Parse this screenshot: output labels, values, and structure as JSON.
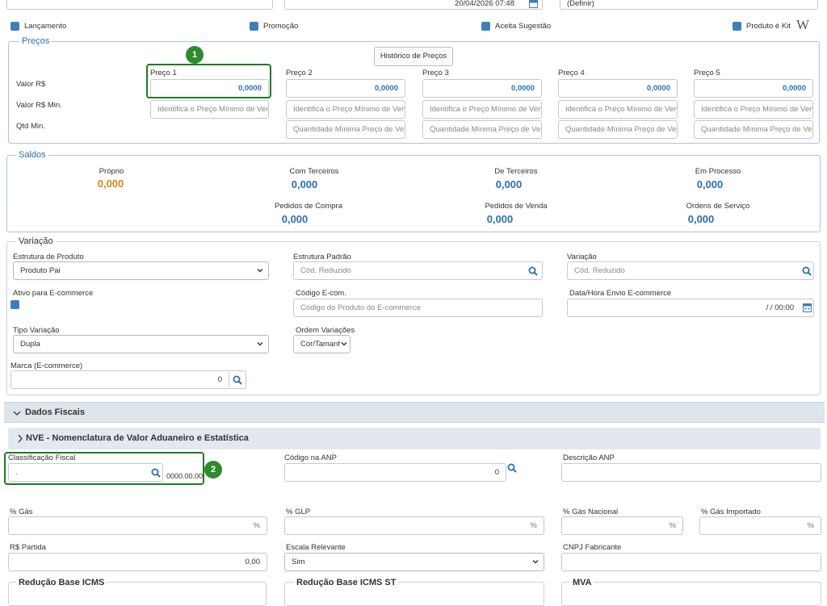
{
  "top": {
    "datetime": "20/04/2026 07:48",
    "definir": "(Definir)"
  },
  "flags": [
    {
      "label": "Lançamento"
    },
    {
      "label": "Promoção"
    },
    {
      "label": "Aceita Sugestão"
    },
    {
      "label": "Produto é Kit"
    }
  ],
  "wiki_glyph": "W",
  "precos": {
    "legend": "Preços",
    "history_button": "Histórico de Preços",
    "row_labels": [
      "Valor R$",
      "Valor R$ Min.",
      "Qtd Min."
    ],
    "columns": [
      {
        "label": "Preço 1",
        "value": "0,0000",
        "min_placeholder": "Identifica o Preço Mínimo de Ven",
        "qty_placeholder": ""
      },
      {
        "label": "Preço 2",
        "value": "0,0000",
        "min_placeholder": "Identifica o Preço Mínimo de Ven",
        "qty_placeholder": "Quantidade Mínima Preço de Ver"
      },
      {
        "label": "Preço 3",
        "value": "0,0000",
        "min_placeholder": "Identifica o Preço Mínimo de Ven",
        "qty_placeholder": "Quantidade Mínima Preço de Ver"
      },
      {
        "label": "Preço 4",
        "value": "0,0000",
        "min_placeholder": "Identifica o Preço Mínimo de Ven",
        "qty_placeholder": "Quantidade Mínima Preço de Ver"
      },
      {
        "label": "Preço 5",
        "value": "0,0000",
        "min_placeholder": "Identifica o Preço Mínimo de Ven",
        "qty_placeholder": "Quantidade Mínima Preço de Ver"
      }
    ]
  },
  "saldos": {
    "legend": "Saldos",
    "items": [
      {
        "label": "Próprio",
        "value": "0,000"
      },
      {
        "label": "Com Terceiros",
        "value": "0,000"
      },
      {
        "label": "De Terceiros",
        "value": "0,000"
      },
      {
        "label": "Em Processo",
        "value": "0,000"
      },
      {
        "label": "Pedidos de Compra",
        "value": "0,000"
      },
      {
        "label": "Pedidos de Venda",
        "value": "0,000"
      },
      {
        "label": "Ordens de Serviço",
        "value": "0,000"
      }
    ]
  },
  "variacao": {
    "legend": "Variação",
    "estrutura_produto": {
      "label": "Estrutura de Produto",
      "value": "Produto Pai"
    },
    "estrutura_padrao": {
      "label": "Estrutura Padrão",
      "placeholder": "Cód. Reduzido"
    },
    "variacao": {
      "label": "Variação",
      "placeholder": "Cód. Reduzido"
    },
    "ativo_ecommerce": {
      "label": "Ativo para E-commerce"
    },
    "codigo_ecom": {
      "label": "Código E-com.",
      "placeholder": "Código do Produto do E-commerce"
    },
    "data_envio": {
      "label": "Data/Hora Envio E-commerce",
      "value": "/  /   00:00"
    },
    "tipo_variacao": {
      "label": "Tipo Variação",
      "value": "Dupla"
    },
    "ordem_variacoes": {
      "label": "Ordem Variações",
      "value": "Cor/Tamanho"
    },
    "marca": {
      "label": "Marca (E-commerce)",
      "value": "0"
    }
  },
  "dados_fiscais": {
    "title": "Dados Fiscais",
    "nve_title": "NVE - Nomenclatura de Valor Aduaneiro e Estatística",
    "classificacao": {
      "label": "Classificação Fiscal",
      "value": ".",
      "mask": "0000.00.00"
    },
    "codigo_anp": {
      "label": "Código na ANP",
      "value": "0"
    },
    "descricao_anp": {
      "label": "Descrição ANP"
    },
    "gas": {
      "label": "% Gás",
      "suffix": "%"
    },
    "glp": {
      "label": "% GLP",
      "suffix": "%"
    },
    "gas_nacional": {
      "label": "% Gás Nacional",
      "suffix": "%"
    },
    "gas_importado": {
      "label": "% Gás Importado",
      "suffix": "%"
    },
    "rs_partida": {
      "label": "R$ Partida",
      "value": "0,00"
    },
    "escala_relevante": {
      "label": "Escala Relevante",
      "value": "Sim"
    },
    "cnpj_fabricante": {
      "label": "CNPJ Fabricante"
    },
    "reducao_icms": "Redução Base ICMS",
    "reducao_icms_st": "Redução Base ICMS ST",
    "mva": "MVA"
  },
  "callouts": [
    "1",
    "2"
  ],
  "colors": {
    "accent": "#2a6fb5",
    "orange": "#d4861a",
    "callout": "#1f7a1f"
  }
}
